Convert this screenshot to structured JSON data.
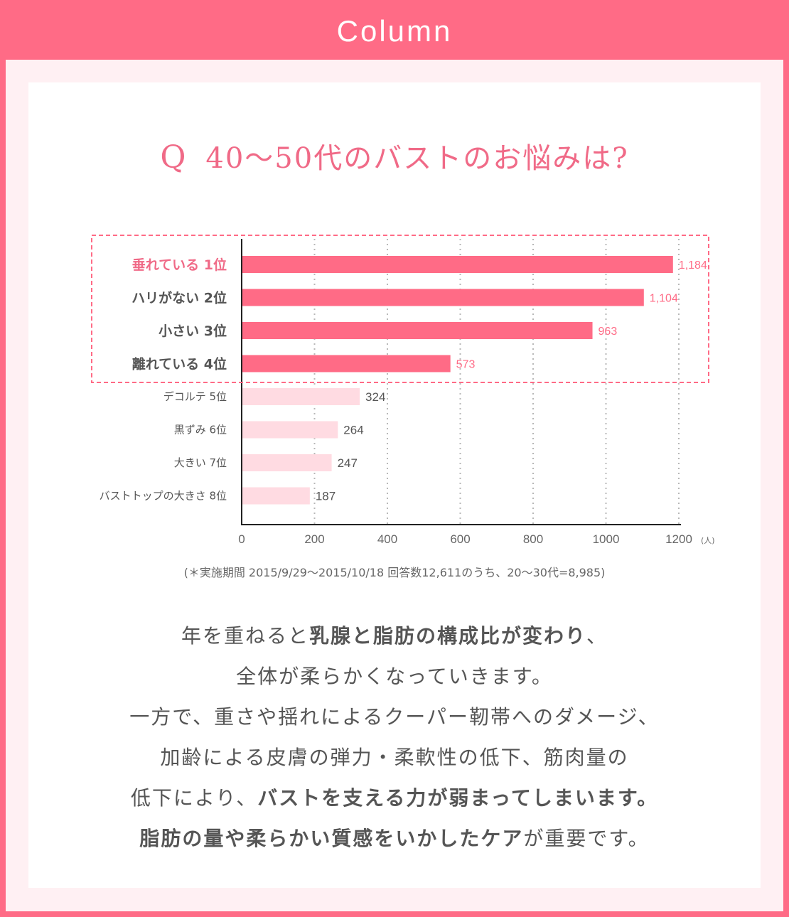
{
  "header": {
    "title": "Column"
  },
  "question": {
    "q": "Q",
    "text": "40〜50代のバストのお悩みは?"
  },
  "colors": {
    "accent": "#ff6b86",
    "light_bar": "#ffdbe2",
    "panel": "#fff0f3"
  },
  "chart_data": {
    "type": "bar",
    "orientation": "horizontal",
    "categories": [
      "垂れている 1位",
      "ハリがない 2位",
      "小さい 3位",
      "離れている 4位",
      "デコルテ 5位",
      "黒ずみ 6位",
      "大きい 7位",
      "バストトップの大きさ 8位"
    ],
    "values": [
      1184,
      1104,
      963,
      573,
      324,
      264,
      247,
      187
    ],
    "value_labels": [
      "1,184",
      "1,104",
      "963",
      "573",
      "324",
      "264",
      "247",
      "187"
    ],
    "highlight_top": 4,
    "xlim": [
      0,
      1200
    ],
    "x_ticks": [
      "0",
      "200",
      "400",
      "600",
      "800",
      "1000",
      "1200"
    ],
    "x_unit": "(人)",
    "grid": "vertical dotted"
  },
  "note": "(＊実施期間 2015/9/29〜2015/10/18 回答数12,611のうち、20〜30代=8,985)",
  "body": {
    "l1a": "年を重ねると",
    "l1b": "乳腺と脂肪の構成比が変わり",
    "l1c": "、",
    "l2": "全体が柔らかくなっていきます。",
    "l3": "一方で、重さや揺れによるクーパー靭帯へのダメージ、",
    "l4": "加齢による皮膚の弾力・柔軟性の低下、筋肉量の",
    "l5a": "低下により、",
    "l5b": "バストを支える力が弱まってしまいます。",
    "l6a": "脂肪の量や柔らかい質感をいかしたケア",
    "l6b": "が重要です。"
  }
}
